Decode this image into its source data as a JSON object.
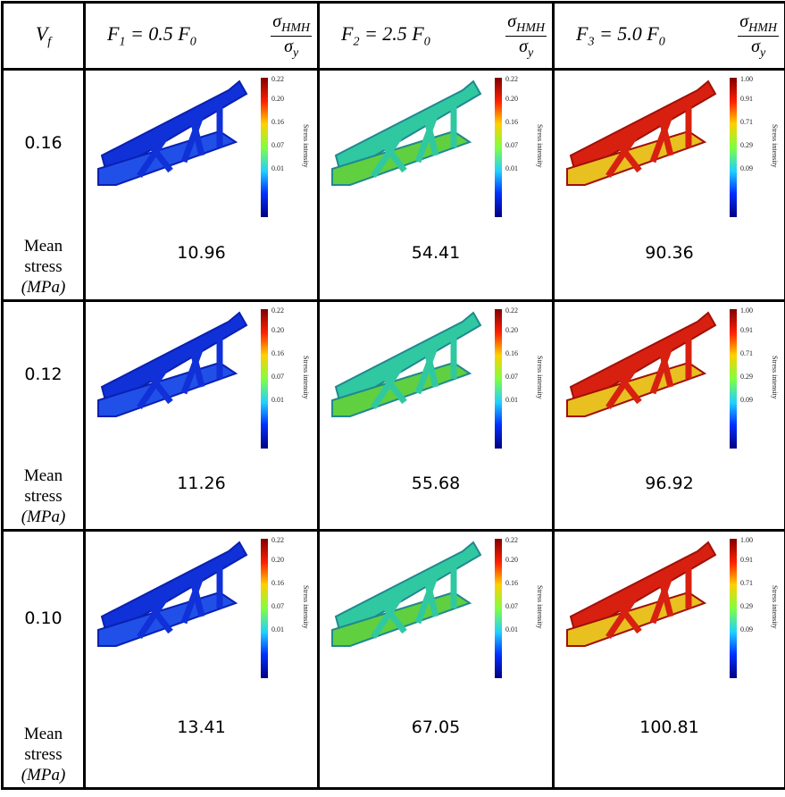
{
  "header": {
    "vf": [
      "V",
      "f"
    ],
    "forces": [
      [
        "F",
        "1",
        " = 0.5 F",
        "0"
      ],
      [
        "F",
        "2",
        " = 2.5 F",
        "0"
      ],
      [
        "F",
        "3",
        " = 5.0 F",
        "0"
      ]
    ],
    "ratio": {
      "num": [
        "σ",
        "HMH"
      ],
      "den": [
        "σ",
        "y"
      ]
    }
  },
  "colorbar": {
    "label": "Stress intensity",
    "scales": [
      [
        "0.22",
        "0.20",
        "0.16",
        "0.07",
        "0.01"
      ],
      [
        "1.00",
        "0.91",
        "0.71",
        "0.29",
        "0.09"
      ]
    ]
  },
  "mean_label": [
    "Mean",
    "stress",
    "(MPa)"
  ],
  "rows": [
    {
      "vf": "0.16",
      "mean": [
        "10.96",
        "54.41",
        "90.36"
      ]
    },
    {
      "vf": "0.12",
      "mean": [
        "11.26",
        "55.68",
        "96.92"
      ]
    },
    {
      "vf": "0.10",
      "mean": [
        "13.41",
        "67.05",
        "100.81"
      ]
    }
  ]
}
